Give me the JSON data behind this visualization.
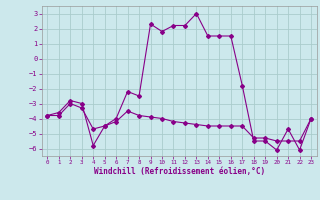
{
  "xlabel": "Windchill (Refroidissement éolien,°C)",
  "background_color": "#cce8ec",
  "grid_color": "#aacccc",
  "line_color": "#880088",
  "xlim": [
    -0.5,
    23.5
  ],
  "ylim": [
    -6.5,
    3.5
  ],
  "xticks": [
    0,
    1,
    2,
    3,
    4,
    5,
    6,
    7,
    8,
    9,
    10,
    11,
    12,
    13,
    14,
    15,
    16,
    17,
    18,
    19,
    20,
    21,
    22,
    23
  ],
  "yticks": [
    -6,
    -5,
    -4,
    -3,
    -2,
    -1,
    0,
    1,
    2,
    3
  ],
  "line1_x": [
    0,
    1,
    2,
    3,
    4,
    5,
    6,
    7,
    8,
    9,
    10,
    11,
    12,
    13,
    14,
    15,
    16,
    17,
    18,
    19,
    20,
    21,
    22,
    23
  ],
  "line1_y": [
    -3.8,
    -3.6,
    -2.8,
    -3.0,
    -5.8,
    -4.5,
    -4.0,
    -2.2,
    -2.5,
    2.3,
    1.8,
    2.2,
    2.2,
    3.0,
    1.5,
    1.5,
    1.5,
    -1.8,
    -5.5,
    -5.5,
    -6.1,
    -4.7,
    -6.1,
    -4.0
  ],
  "line2_x": [
    0,
    1,
    2,
    3,
    4,
    5,
    6,
    7,
    8,
    9,
    10,
    11,
    12,
    13,
    14,
    15,
    16,
    17,
    18,
    19,
    20,
    21,
    22,
    23
  ],
  "line2_y": [
    -3.8,
    -3.8,
    -3.0,
    -3.3,
    -4.7,
    -4.5,
    -4.2,
    -3.5,
    -3.8,
    -3.9,
    -4.0,
    -4.2,
    -4.3,
    -4.4,
    -4.5,
    -4.5,
    -4.5,
    -4.5,
    -5.3,
    -5.3,
    -5.5,
    -5.5,
    -5.5,
    -4.0
  ]
}
